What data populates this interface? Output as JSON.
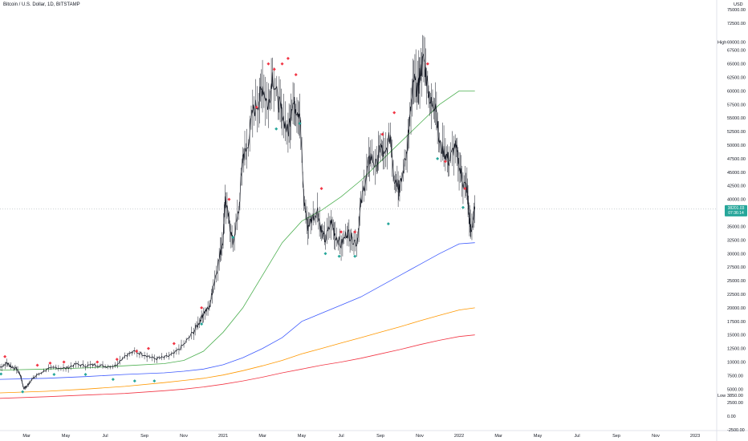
{
  "header": {
    "symbol_title": "Bitcoin / U.S. Dollar, 1D, BITSTAMP",
    "currency": "USD"
  },
  "price_tag": {
    "value": "38201.03",
    "countdown": "07:36:14",
    "color": "#26a69a"
  },
  "chart_data": {
    "type": "line",
    "title": "Bitcoin / U.S. Dollar, 1D, BITSTAMP",
    "y_unit": "USD",
    "ylim": [
      -2500,
      75000
    ],
    "y_ticks": [
      -2500,
      0,
      2500,
      3850,
      5000,
      7500,
      10000,
      12500,
      15000,
      17500,
      20000,
      22500,
      25000,
      27500,
      30000,
      32500,
      35000,
      37500,
      40000,
      42500,
      45000,
      47500,
      50000,
      52500,
      55000,
      57500,
      60000,
      62500,
      65000,
      67500,
      69000,
      72500,
      75000
    ],
    "y_tick_labels": [
      "-2500.00",
      "0.00",
      "2500.00",
      "3850.00",
      "5000.00",
      "7500.00",
      "10000.00",
      "12500.00",
      "15000.00",
      "17500.00",
      "20000.00",
      "22500.00",
      "25000.00",
      "27500.00",
      "30000.00",
      "32500.00",
      "35000.00",
      "37500.00",
      "40000.00",
      "42500.00",
      "45000.00",
      "47500.00",
      "50000.00",
      "52500.00",
      "55000.00",
      "57500.00",
      "60000.00",
      "62500.00",
      "65000.00",
      "67500.00",
      "69000.00",
      "72500.00",
      "75000.00"
    ],
    "x_axis_labels": [
      {
        "label": "Mar",
        "t": 2.0
      },
      {
        "label": "May",
        "t": 4.0
      },
      {
        "label": "Jul",
        "t": 6.0
      },
      {
        "label": "Sep",
        "t": 8.0
      },
      {
        "label": "Nov",
        "t": 10.0
      },
      {
        "label": "2021",
        "t": 12.0
      },
      {
        "label": "Mar",
        "t": 14.0
      },
      {
        "label": "May",
        "t": 16.0
      },
      {
        "label": "Jul",
        "t": 18.0
      },
      {
        "label": "Sep",
        "t": 20.0
      },
      {
        "label": "Nov",
        "t": 22.0
      },
      {
        "label": "2022",
        "t": 24.0
      },
      {
        "label": "Mar",
        "t": 26.0
      },
      {
        "label": "May",
        "t": 28.0
      },
      {
        "label": "Jul",
        "t": 30.0
      },
      {
        "label": "Sep",
        "t": 32.0
      },
      {
        "label": "Nov",
        "t": 34.0
      },
      {
        "label": "2023",
        "t": 36.0
      }
    ],
    "x_range": [
      0.65,
      37.1
    ],
    "price_series": {
      "t": [
        0.65,
        1.0,
        1.2,
        1.5,
        1.7,
        1.85,
        2.0,
        2.2,
        2.5,
        3.0,
        3.5,
        4.0,
        4.5,
        5.0,
        5.5,
        6.0,
        6.5,
        7.0,
        7.5,
        8.0,
        8.5,
        9.0,
        9.5,
        10.0,
        10.5,
        10.8,
        11.0,
        11.3,
        11.5,
        11.8,
        12.0,
        12.1,
        12.3,
        12.5,
        12.8,
        13.0,
        13.2,
        13.5,
        13.8,
        14.0,
        14.3,
        14.5,
        14.8,
        15.0,
        15.3,
        15.5,
        15.7,
        15.9,
        16.1,
        16.3,
        16.5,
        16.8,
        17.0,
        17.2,
        17.5,
        17.7,
        18.0,
        18.3,
        18.5,
        18.8,
        19.0,
        19.3,
        19.5,
        19.8,
        20.0,
        20.2,
        20.5,
        20.7,
        20.9,
        21.0,
        21.3,
        21.5,
        21.7,
        21.9,
        22.0,
        22.2,
        22.4,
        22.6,
        22.8,
        23.0,
        23.3,
        23.5,
        23.8,
        24.0,
        24.2,
        24.4,
        24.5,
        24.6,
        24.8
      ],
      "close": [
        9000,
        9800,
        9200,
        8700,
        7500,
        5200,
        5400,
        6500,
        7500,
        8600,
        9000,
        8800,
        9600,
        9300,
        9500,
        9200,
        9300,
        11200,
        11900,
        11400,
        10600,
        10800,
        11500,
        13200,
        15600,
        17500,
        19000,
        20000,
        24000,
        29000,
        33000,
        40000,
        36000,
        32000,
        38000,
        48000,
        49000,
        56000,
        58000,
        61000,
        57000,
        63000,
        58000,
        56000,
        52000,
        58000,
        57000,
        56000,
        40000,
        35000,
        36500,
        38000,
        34000,
        32500,
        36000,
        33500,
        31500,
        34000,
        33000,
        32000,
        39000,
        45000,
        48000,
        46000,
        50000,
        47500,
        52000,
        44000,
        43000,
        42000,
        48000,
        55000,
        62000,
        60000,
        63000,
        66000,
        61000,
        57000,
        58000,
        50000,
        48500,
        47000,
        50000,
        46500,
        43000,
        42000,
        37000,
        34000,
        38200
      ]
    },
    "series": [
      {
        "type": "line",
        "color": "#4caf50",
        "t": [
          0.65,
          3,
          5,
          7,
          9,
          10,
          11,
          12,
          13,
          14,
          15,
          16,
          17,
          18,
          19,
          20,
          21,
          22,
          23,
          24,
          24.8
        ],
        "values": [
          8500,
          8700,
          8900,
          9300,
          9700,
          10300,
          12000,
          15500,
          20000,
          26000,
          32000,
          36000,
          38000,
          40500,
          43500,
          47000,
          50500,
          54000,
          57500,
          60000,
          60000
        ]
      },
      {
        "type": "line",
        "color": "#3d5afe",
        "t": [
          0.65,
          3,
          5,
          7,
          9,
          10,
          11,
          12,
          13,
          14,
          15,
          16,
          17,
          18,
          19,
          20,
          21,
          22,
          23,
          24,
          24.8
        ],
        "values": [
          6800,
          7000,
          7300,
          7700,
          8000,
          8300,
          8700,
          9500,
          10800,
          12500,
          14500,
          17500,
          19000,
          20500,
          22000,
          24000,
          26000,
          28000,
          30000,
          31800,
          32000
        ]
      },
      {
        "type": "line",
        "color": "#ff9800",
        "t": [
          0.65,
          3,
          5,
          7,
          9,
          10,
          11,
          12,
          13,
          14,
          15,
          16,
          17,
          18,
          19,
          20,
          21,
          22,
          23,
          24,
          24.8
        ],
        "values": [
          4300,
          4600,
          5000,
          5500,
          6200,
          6600,
          7000,
          7600,
          8400,
          9300,
          10300,
          11500,
          12500,
          13500,
          14500,
          15500,
          16500,
          17600,
          18600,
          19600,
          20000
        ]
      },
      {
        "type": "line",
        "color": "#f23645",
        "t": [
          0.65,
          3,
          5,
          7,
          9,
          10,
          11,
          12,
          13,
          14,
          15,
          16,
          17,
          18,
          19,
          20,
          21,
          22,
          23,
          24,
          24.8
        ],
        "values": [
          3300,
          3600,
          3900,
          4200,
          4700,
          5000,
          5400,
          5900,
          6500,
          7200,
          8000,
          8700,
          9400,
          10000,
          10700,
          11500,
          12300,
          13200,
          14000,
          14700,
          15000
        ]
      }
    ],
    "sell_markers": [
      [
        0.9,
        11000
      ],
      [
        2.55,
        9400
      ],
      [
        3.2,
        9800
      ],
      [
        3.9,
        10000
      ],
      [
        5.6,
        10000
      ],
      [
        6.6,
        10500
      ],
      [
        7.6,
        12000
      ],
      [
        8.2,
        12500
      ],
      [
        9.5,
        13400
      ],
      [
        10.9,
        20000
      ],
      [
        12.3,
        40000
      ],
      [
        13.7,
        57000
      ],
      [
        14.3,
        65000
      ],
      [
        14.6,
        64000
      ],
      [
        15.0,
        65000
      ],
      [
        15.3,
        66000
      ],
      [
        15.7,
        63000
      ],
      [
        17.0,
        42000
      ],
      [
        18.0,
        34000
      ],
      [
        18.7,
        34000
      ],
      [
        20.1,
        52000
      ],
      [
        20.7,
        56000
      ],
      [
        22.4,
        65000
      ],
      [
        23.3,
        47000
      ],
      [
        24.3,
        42000
      ]
    ],
    "buy_markers": [
      [
        0.7,
        7800
      ],
      [
        1.8,
        4500
      ],
      [
        3.4,
        7700
      ],
      [
        5.0,
        7700
      ],
      [
        6.4,
        6800
      ],
      [
        7.5,
        6500
      ],
      [
        8.5,
        6500
      ],
      [
        10.9,
        17000
      ],
      [
        12.5,
        33000
      ],
      [
        14.7,
        53000
      ],
      [
        15.9,
        54000
      ],
      [
        17.2,
        30000
      ],
      [
        17.9,
        29500
      ],
      [
        18.7,
        29500
      ],
      [
        20.4,
        35500
      ],
      [
        22.9,
        47500
      ],
      [
        24.2,
        38500
      ]
    ],
    "side_labels": {
      "high": "High",
      "low": "Low"
    },
    "grid": false
  }
}
